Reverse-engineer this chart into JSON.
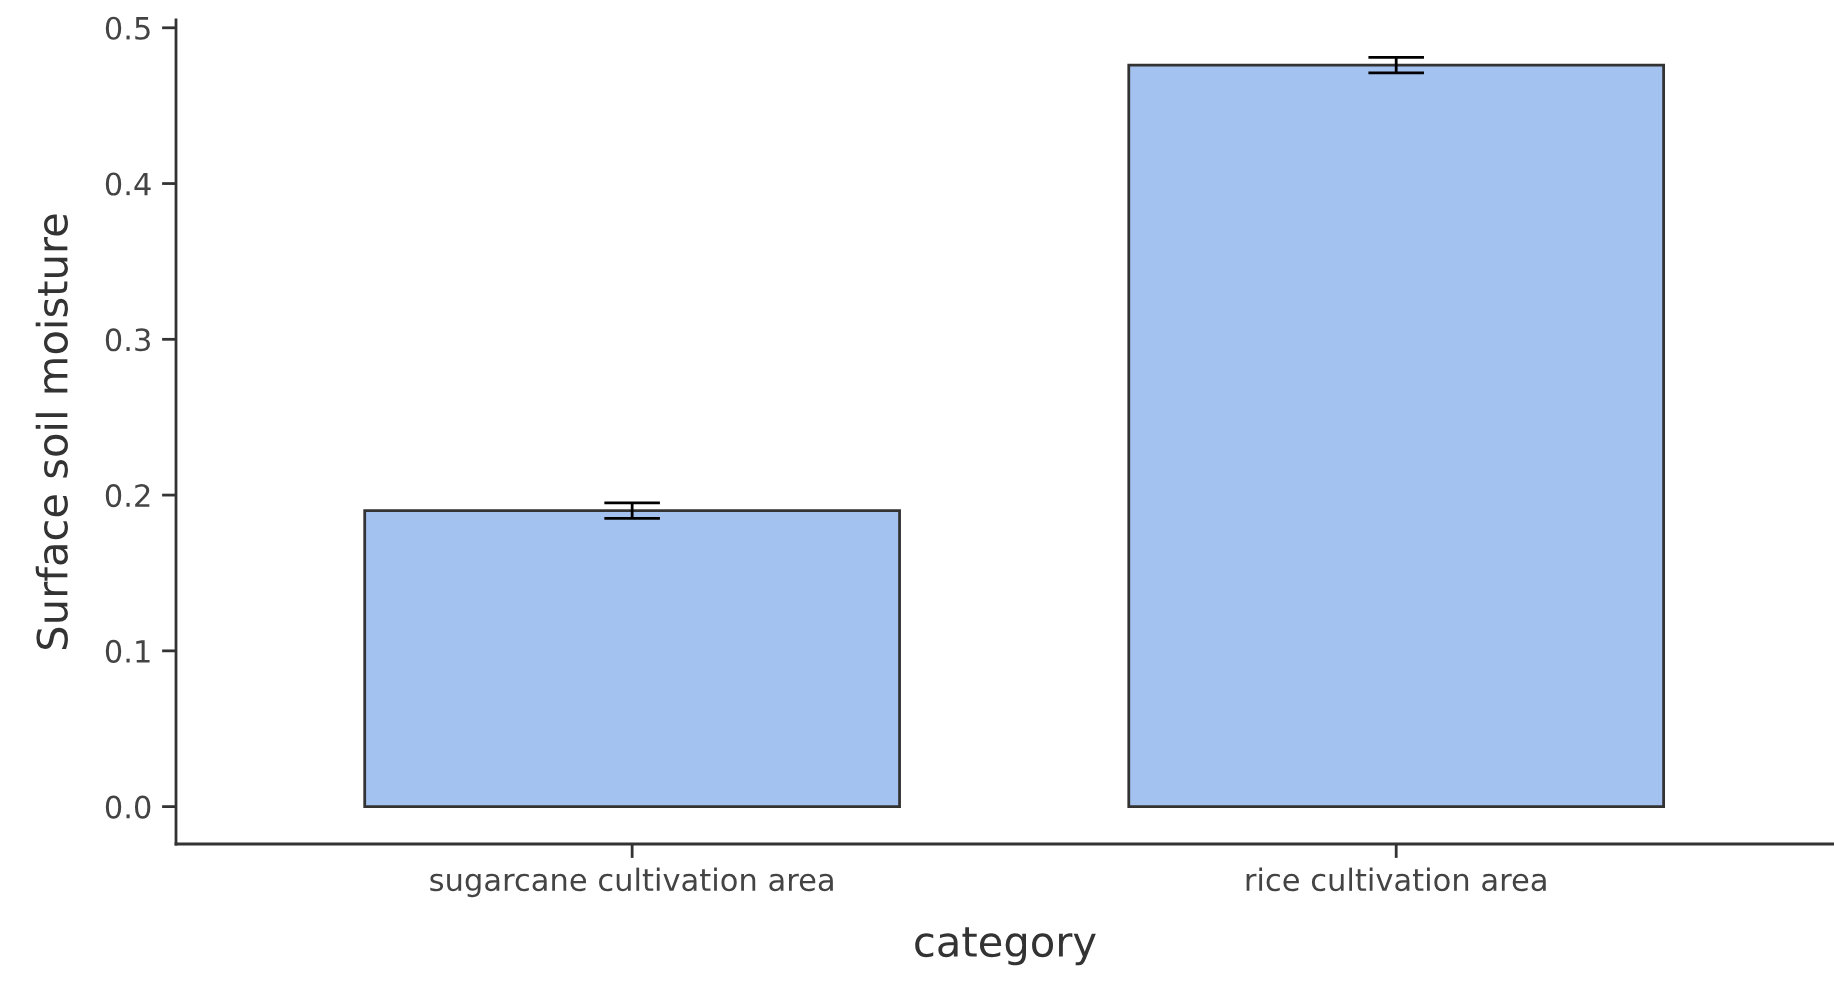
{
  "chart_data": {
    "type": "bar",
    "xlabel": "category",
    "ylabel": "Surface soil moisture",
    "categories": [
      "sugarcane cultivation area",
      "rice cultivation area"
    ],
    "values": [
      0.19,
      0.476
    ],
    "errors": [
      0.005,
      0.005
    ],
    "color": "#a4c2f0",
    "ylim": [
      -0.024,
      0.505
    ],
    "yticks": [
      {
        "value": 0,
        "label": "0.0"
      },
      0.1,
      0.2,
      0.3,
      0.4,
      0.5
    ],
    "grid": false
  }
}
